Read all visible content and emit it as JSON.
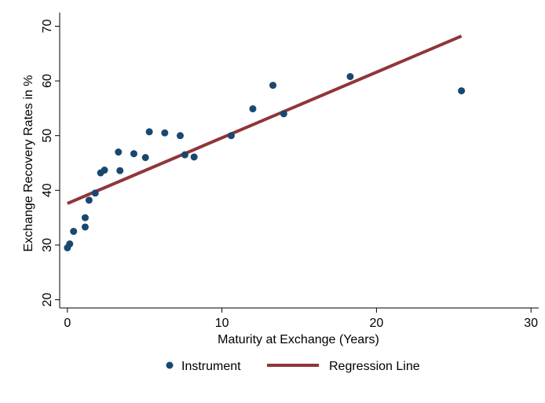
{
  "chart_data": {
    "type": "scatter",
    "xlabel": "Maturity at Exchange (Years)",
    "ylabel": "Exchange Recovery Rates in %",
    "xlim": [
      -0.5,
      30.5
    ],
    "ylim": [
      18.5,
      72.5
    ],
    "xticks": [
      0,
      10,
      20,
      30
    ],
    "yticks": [
      20,
      30,
      40,
      50,
      60,
      70
    ],
    "grid": false,
    "legend_position": "bottom",
    "series": [
      {
        "name": "Instrument",
        "type": "scatter",
        "color": "#1a476f",
        "points": [
          {
            "x": 0.0,
            "y": 29.5
          },
          {
            "x": 0.15,
            "y": 30.2
          },
          {
            "x": 0.4,
            "y": 32.5
          },
          {
            "x": 1.15,
            "y": 33.3
          },
          {
            "x": 1.15,
            "y": 35.0
          },
          {
            "x": 1.4,
            "y": 38.2
          },
          {
            "x": 1.8,
            "y": 39.5
          },
          {
            "x": 2.15,
            "y": 43.2
          },
          {
            "x": 2.4,
            "y": 43.7
          },
          {
            "x": 3.3,
            "y": 47.0
          },
          {
            "x": 3.4,
            "y": 43.6
          },
          {
            "x": 4.3,
            "y": 46.7
          },
          {
            "x": 5.05,
            "y": 46.0
          },
          {
            "x": 5.3,
            "y": 50.7
          },
          {
            "x": 6.3,
            "y": 50.5
          },
          {
            "x": 7.3,
            "y": 50.0
          },
          {
            "x": 7.6,
            "y": 46.5
          },
          {
            "x": 8.2,
            "y": 46.1
          },
          {
            "x": 10.6,
            "y": 50.0
          },
          {
            "x": 12.0,
            "y": 54.9
          },
          {
            "x": 13.3,
            "y": 59.2
          },
          {
            "x": 14.0,
            "y": 54.0
          },
          {
            "x": 18.3,
            "y": 60.8
          },
          {
            "x": 25.5,
            "y": 58.2
          }
        ]
      },
      {
        "name": "Regression Line",
        "type": "line",
        "color": "#90353b",
        "points": [
          {
            "x": 0.0,
            "y": 37.6
          },
          {
            "x": 25.5,
            "y": 68.2
          }
        ]
      }
    ]
  }
}
